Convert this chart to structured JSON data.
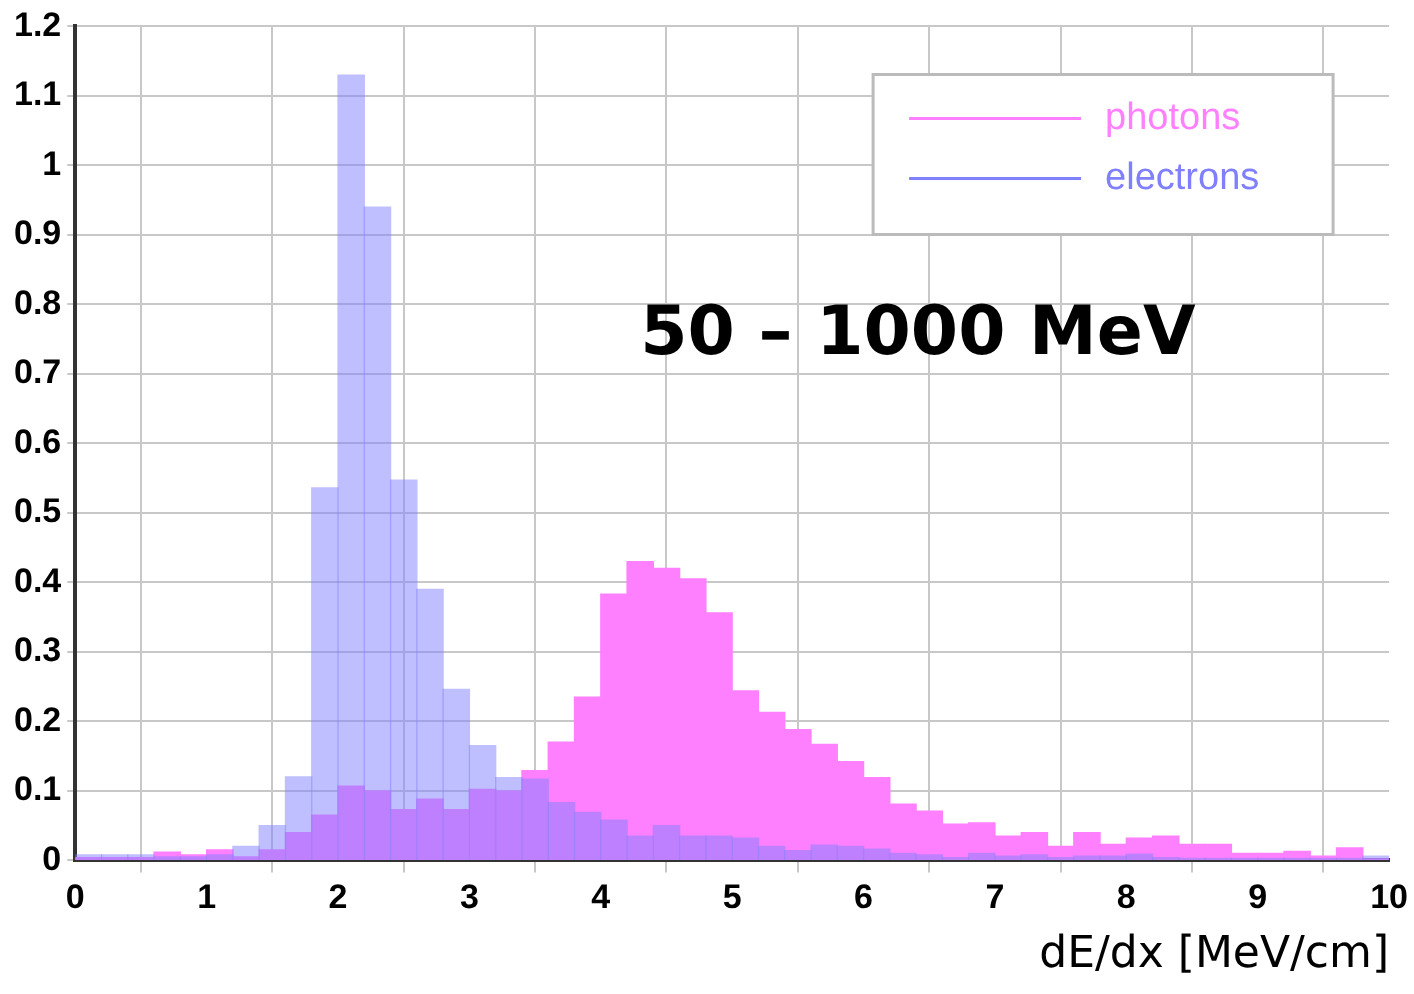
{
  "chart_data": {
    "type": "histogram",
    "xlabel": "dE/dx [MeV/cm]",
    "annotations": [
      "50 – 1000 MeV"
    ],
    "bins": [
      0,
      0.2,
      0.4,
      0.6,
      0.8,
      1,
      1.2,
      1.4,
      1.6,
      1.8,
      2,
      2.2,
      2.4,
      2.6,
      2.8,
      3,
      3.2,
      3.4,
      3.6,
      3.8,
      4,
      4.2,
      4.4,
      4.6,
      4.8,
      5,
      5.2,
      5.4,
      5.6,
      5.8,
      6,
      6.2,
      6.4,
      6.6,
      6.8,
      7,
      7.2,
      7.4,
      7.6,
      7.8,
      8,
      8.2,
      8.4,
      8.6,
      8.8,
      9,
      9.2,
      9.4,
      9.6,
      9.8,
      10
    ],
    "series": [
      {
        "name": "photons",
        "color": "#ff80ff",
        "values": [
          0.004,
          0.004,
          0.004,
          0.012,
          0.008,
          0.015,
          0.005,
          0.015,
          0.04,
          0.065,
          0.107,
          0.1,
          0.073,
          0.088,
          0.073,
          0.102,
          0.1,
          0.129,
          0.17,
          0.235,
          0.383,
          0.43,
          0.42,
          0.405,
          0.356,
          0.244,
          0.213,
          0.188,
          0.167,
          0.142,
          0.119,
          0.081,
          0.071,
          0.052,
          0.054,
          0.035,
          0.04,
          0.02,
          0.04,
          0.023,
          0.032,
          0.035,
          0.023,
          0.023,
          0.01,
          0.01,
          0.013,
          0.006,
          0.018,
          0.002
        ]
      },
      {
        "name": "electrons",
        "color": "#8080ff",
        "values": [
          0.008,
          0.008,
          0.008,
          0.005,
          0.005,
          0.008,
          0.02,
          0.05,
          0.12,
          0.536,
          1.13,
          0.94,
          0.547,
          0.39,
          0.246,
          0.165,
          0.119,
          0.117,
          0.083,
          0.069,
          0.058,
          0.035,
          0.05,
          0.035,
          0.035,
          0.032,
          0.02,
          0.014,
          0.022,
          0.02,
          0.016,
          0.01,
          0.008,
          0.004,
          0.01,
          0.006,
          0.008,
          0.004,
          0.006,
          0.006,
          0.009,
          0.004,
          0.003,
          0.003,
          0.003,
          0.003,
          0.003,
          0.003,
          0.003,
          0.006
        ]
      }
    ],
    "xlim": [
      0,
      10
    ],
    "xticks": [
      0,
      1,
      2,
      3,
      4,
      5,
      6,
      7,
      8,
      9,
      10
    ],
    "ylim": [
      0,
      1.2
    ],
    "yticks": [
      0,
      0.1,
      0.2,
      0.3,
      0.4,
      0.5,
      0.6,
      0.7,
      0.8,
      0.9,
      1,
      1.1,
      1.2
    ],
    "grid": true,
    "legend": "top right"
  }
}
